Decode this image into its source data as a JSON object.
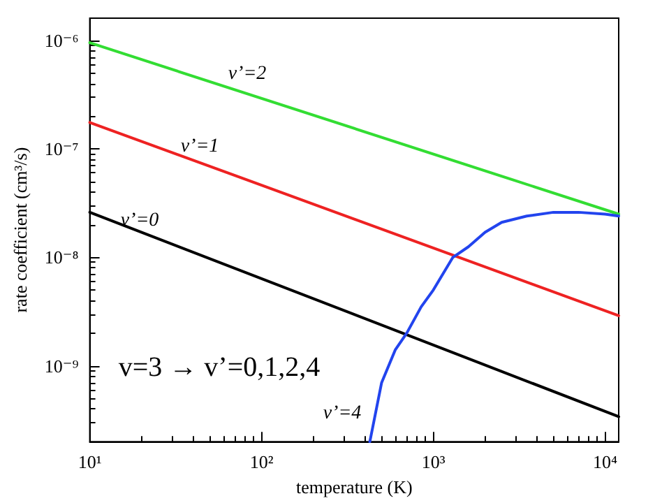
{
  "chart_data": {
    "type": "line",
    "xlabel": "temperature (K)",
    "ylabel": "rate coefficient (cm³/s)",
    "log": "xy",
    "grid": false,
    "marker": "none",
    "line_style": "solid",
    "xlim": [
      10,
      12000
    ],
    "ylim": [
      2e-10,
      1.6e-06
    ],
    "xticks": [
      {
        "value": 10,
        "label": "10¹"
      },
      {
        "value": 100,
        "label": "10²"
      },
      {
        "value": 1000,
        "label": "10³"
      },
      {
        "value": 10000,
        "label": "10⁴"
      }
    ],
    "yticks": [
      {
        "value": 1e-09,
        "label": "10⁻⁹"
      },
      {
        "value": 1e-08,
        "label": "10⁻⁸"
      },
      {
        "value": 1e-07,
        "label": "10⁻⁷"
      },
      {
        "value": 1e-06,
        "label": "10⁻⁶"
      }
    ],
    "series": [
      {
        "color": "#33dd33",
        "x": [
          10,
          12000
        ],
        "values": [
          9.5e-07,
          2.5e-08
        ]
      },
      {
        "color": "#ee2222",
        "x": [
          10,
          12000
        ],
        "values": [
          1.75e-07,
          2.9e-09
        ]
      },
      {
        "color": "#000000",
        "x": [
          10,
          12000
        ],
        "values": [
          2.6e-08,
          3.4e-10
        ]
      },
      {
        "color": "#2244ee",
        "x": [
          427,
          500,
          600,
          700,
          850,
          1000,
          1300,
          1600,
          2000,
          2500,
          3500,
          5000,
          7000,
          10000,
          12000
        ],
        "values": [
          2e-10,
          7e-10,
          1.4e-09,
          2e-09,
          3.5e-09,
          5e-09,
          1e-08,
          1.25e-08,
          1.7e-08,
          2.1e-08,
          2.4e-08,
          2.6e-08,
          2.6e-08,
          2.5e-08,
          2.4e-08
        ]
      }
    ],
    "annotations": [
      "v’=2",
      "v’=1",
      "v’=0",
      "v’=4",
      "v=3 → v’=0,1,2,4"
    ]
  }
}
